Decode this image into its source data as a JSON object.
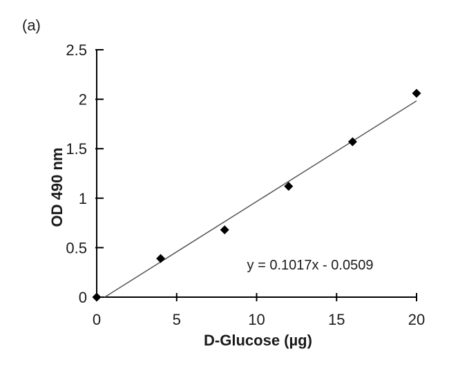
{
  "chart_data": {
    "type": "scatter",
    "panel_label": "(a)",
    "title": "",
    "xlabel": "D-Glucose (µg)",
    "ylabel": "OD 490 nm",
    "xlim": [
      0,
      20
    ],
    "ylim": [
      0,
      2.5
    ],
    "xticks": [
      0,
      5,
      10,
      15,
      20
    ],
    "xtick_labels": [
      "0",
      "5",
      "10",
      "15",
      "20"
    ],
    "yticks": [
      0,
      0.5,
      1,
      1.5,
      2,
      2.5
    ],
    "ytick_labels": [
      "0",
      "0.5",
      "1",
      "1.5",
      "2",
      "2.5"
    ],
    "grid": false,
    "series": [
      {
        "marker": "diamond",
        "color": "#000000",
        "x": [
          0,
          4,
          8,
          12,
          16,
          20
        ],
        "y": [
          0,
          0.39,
          0.68,
          1.12,
          1.57,
          2.06
        ]
      }
    ],
    "trendline": {
      "slope": 0.1017,
      "intercept": -0.0509,
      "color": "#555555",
      "equation": "y = 0.1017x - 0.0509"
    }
  }
}
